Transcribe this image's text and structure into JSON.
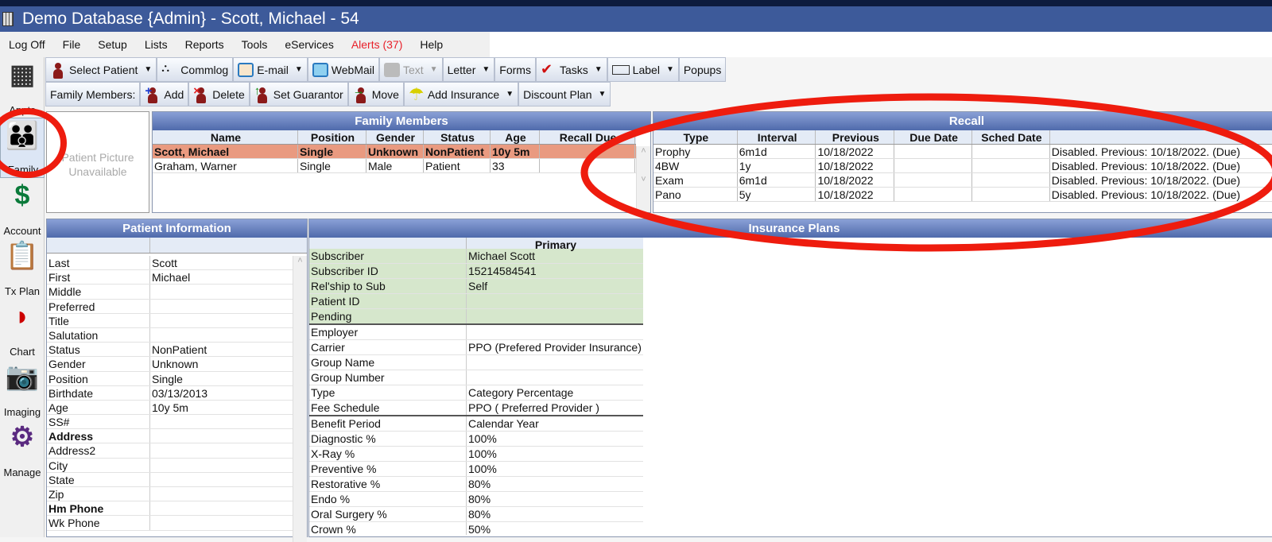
{
  "window": {
    "title": "Demo Database {Admin} - Scott, Michael - 54"
  },
  "menu": [
    "Log Off",
    "File",
    "Setup",
    "Lists",
    "Reports",
    "Tools",
    "eServices",
    "Alerts (37)",
    "Help"
  ],
  "toolbar1": [
    {
      "label": "Select Patient",
      "icon": "select-patient-icon",
      "dropdown": true
    },
    {
      "label": "Commlog",
      "icon": "commlog-icon"
    },
    {
      "label": "E-mail",
      "icon": "email-icon",
      "dropdown": true
    },
    {
      "label": "WebMail",
      "icon": "webmail-icon"
    },
    {
      "label": "Text",
      "icon": "text-message-icon",
      "dropdown": true,
      "disabled": true
    },
    {
      "label": "Letter",
      "dropdown": true
    },
    {
      "label": "Forms"
    },
    {
      "label": "Tasks",
      "icon": "tasks-icon",
      "dropdown": true
    },
    {
      "label": "Label",
      "icon": "label-icon",
      "dropdown": true
    },
    {
      "label": "Popups"
    }
  ],
  "toolbar2": {
    "prefix": "Family Members:",
    "buttons": [
      {
        "label": "Add",
        "icon": "add-member-icon",
        "sym": "+",
        "color": "#1a3ad0"
      },
      {
        "label": "Delete",
        "icon": "delete-member-icon",
        "sym": "×",
        "color": "#e02020"
      },
      {
        "label": "Set Guarantor",
        "icon": "set-guarantor-icon",
        "sym": "↑",
        "color": "#128a12"
      },
      {
        "label": "Move",
        "icon": "move-member-icon",
        "sym": "→",
        "color": "#128a12"
      },
      {
        "label": "Add Insurance",
        "icon": "umbrella-icon",
        "dropdown": true
      },
      {
        "label": "Discount Plan",
        "dropdown": true
      }
    ]
  },
  "sidebar": [
    {
      "label": "Appts",
      "icon": "calendar-icon"
    },
    {
      "label": "Family",
      "icon": "family-icon",
      "selected": true
    },
    {
      "label": "Account",
      "icon": "dollar-icon"
    },
    {
      "label": "Tx Plan",
      "icon": "clipboard-icon"
    },
    {
      "label": "Chart",
      "icon": "tooth-icon"
    },
    {
      "label": "Imaging",
      "icon": "camera-icon"
    },
    {
      "label": "Manage",
      "icon": "gears-icon"
    }
  ],
  "picture": {
    "text": "Patient Picture Unavailable"
  },
  "family": {
    "title": "Family Members",
    "columns": [
      "Name",
      "Position",
      "Gender",
      "Status",
      "Age",
      "Recall Due"
    ],
    "rows": [
      [
        "Scott, Michael",
        "Single",
        "Unknown",
        "NonPatient",
        "10y 5m",
        ""
      ],
      [
        "Graham, Warner",
        "Single",
        "Male",
        "Patient",
        "33",
        ""
      ]
    ],
    "selected_row": 0
  },
  "recall": {
    "title": "Recall",
    "columns": [
      "Type",
      "Interval",
      "Previous",
      "Due Date",
      "Sched Date",
      ""
    ],
    "rows": [
      [
        "Prophy",
        "6m1d",
        "10/18/2022",
        "",
        "",
        "Disabled. Previous: 10/18/2022. (Due)"
      ],
      [
        "4BW",
        "1y",
        "10/18/2022",
        "",
        "",
        "Disabled. Previous: 10/18/2022. (Due)"
      ],
      [
        "Exam",
        "6m1d",
        "10/18/2022",
        "",
        "",
        "Disabled. Previous: 10/18/2022. (Due)"
      ],
      [
        "Pano",
        "5y",
        "10/18/2022",
        "",
        "",
        "Disabled. Previous: 10/18/2022. (Due)"
      ]
    ]
  },
  "patient_info": {
    "title": "Patient Information",
    "rows": [
      [
        "Last",
        "Scott"
      ],
      [
        "First",
        "Michael"
      ],
      [
        "Middle",
        ""
      ],
      [
        "Preferred",
        ""
      ],
      [
        "Title",
        ""
      ],
      [
        "Salutation",
        ""
      ],
      [
        "Status",
        "NonPatient"
      ],
      [
        "Gender",
        "Unknown"
      ],
      [
        "Position",
        "Single"
      ],
      [
        "Birthdate",
        "03/13/2013"
      ],
      [
        "Age",
        "10y 5m"
      ],
      [
        "SS#",
        ""
      ],
      [
        "Address",
        ""
      ],
      [
        "Address2",
        ""
      ],
      [
        "City",
        ""
      ],
      [
        "State",
        ""
      ],
      [
        "Zip",
        ""
      ],
      [
        "Hm Phone",
        ""
      ],
      [
        "Wk Phone",
        ""
      ]
    ],
    "bold_keys": [
      "Address",
      "Hm Phone"
    ]
  },
  "insurance": {
    "title": "Insurance Plans",
    "column": "Primary",
    "rows": [
      [
        "Subscriber",
        "Michael Scott"
      ],
      [
        "Subscriber ID",
        "15214584541"
      ],
      [
        "Rel'ship to Sub",
        "Self"
      ],
      [
        "Patient ID",
        ""
      ],
      [
        "Pending",
        ""
      ],
      [
        "Employer",
        ""
      ],
      [
        "Carrier",
        "PPO (Prefered Provider Insurance)"
      ],
      [
        "Group Name",
        ""
      ],
      [
        "Group Number",
        ""
      ],
      [
        "Type",
        "Category Percentage"
      ],
      [
        "Fee Schedule",
        "PPO ( Preferred Provider )"
      ],
      [
        "Benefit Period",
        "Calendar Year"
      ],
      [
        "Diagnostic %",
        "100%"
      ],
      [
        "X-Ray %",
        "100%"
      ],
      [
        "Preventive %",
        "100%"
      ],
      [
        "Restorative %",
        "80%"
      ],
      [
        "Endo %",
        "80%"
      ],
      [
        "Oral Surgery %",
        "80%"
      ],
      [
        "Crown %",
        "50%"
      ]
    ]
  },
  "colors": {
    "title_bar": "#3d5a9a",
    "panel_header": "#5a74b4",
    "selected_row": "#e99a80",
    "subscriber_bg": "#d6e7cc",
    "alert": "#e8202a",
    "annotation": "#ee1c0e"
  }
}
